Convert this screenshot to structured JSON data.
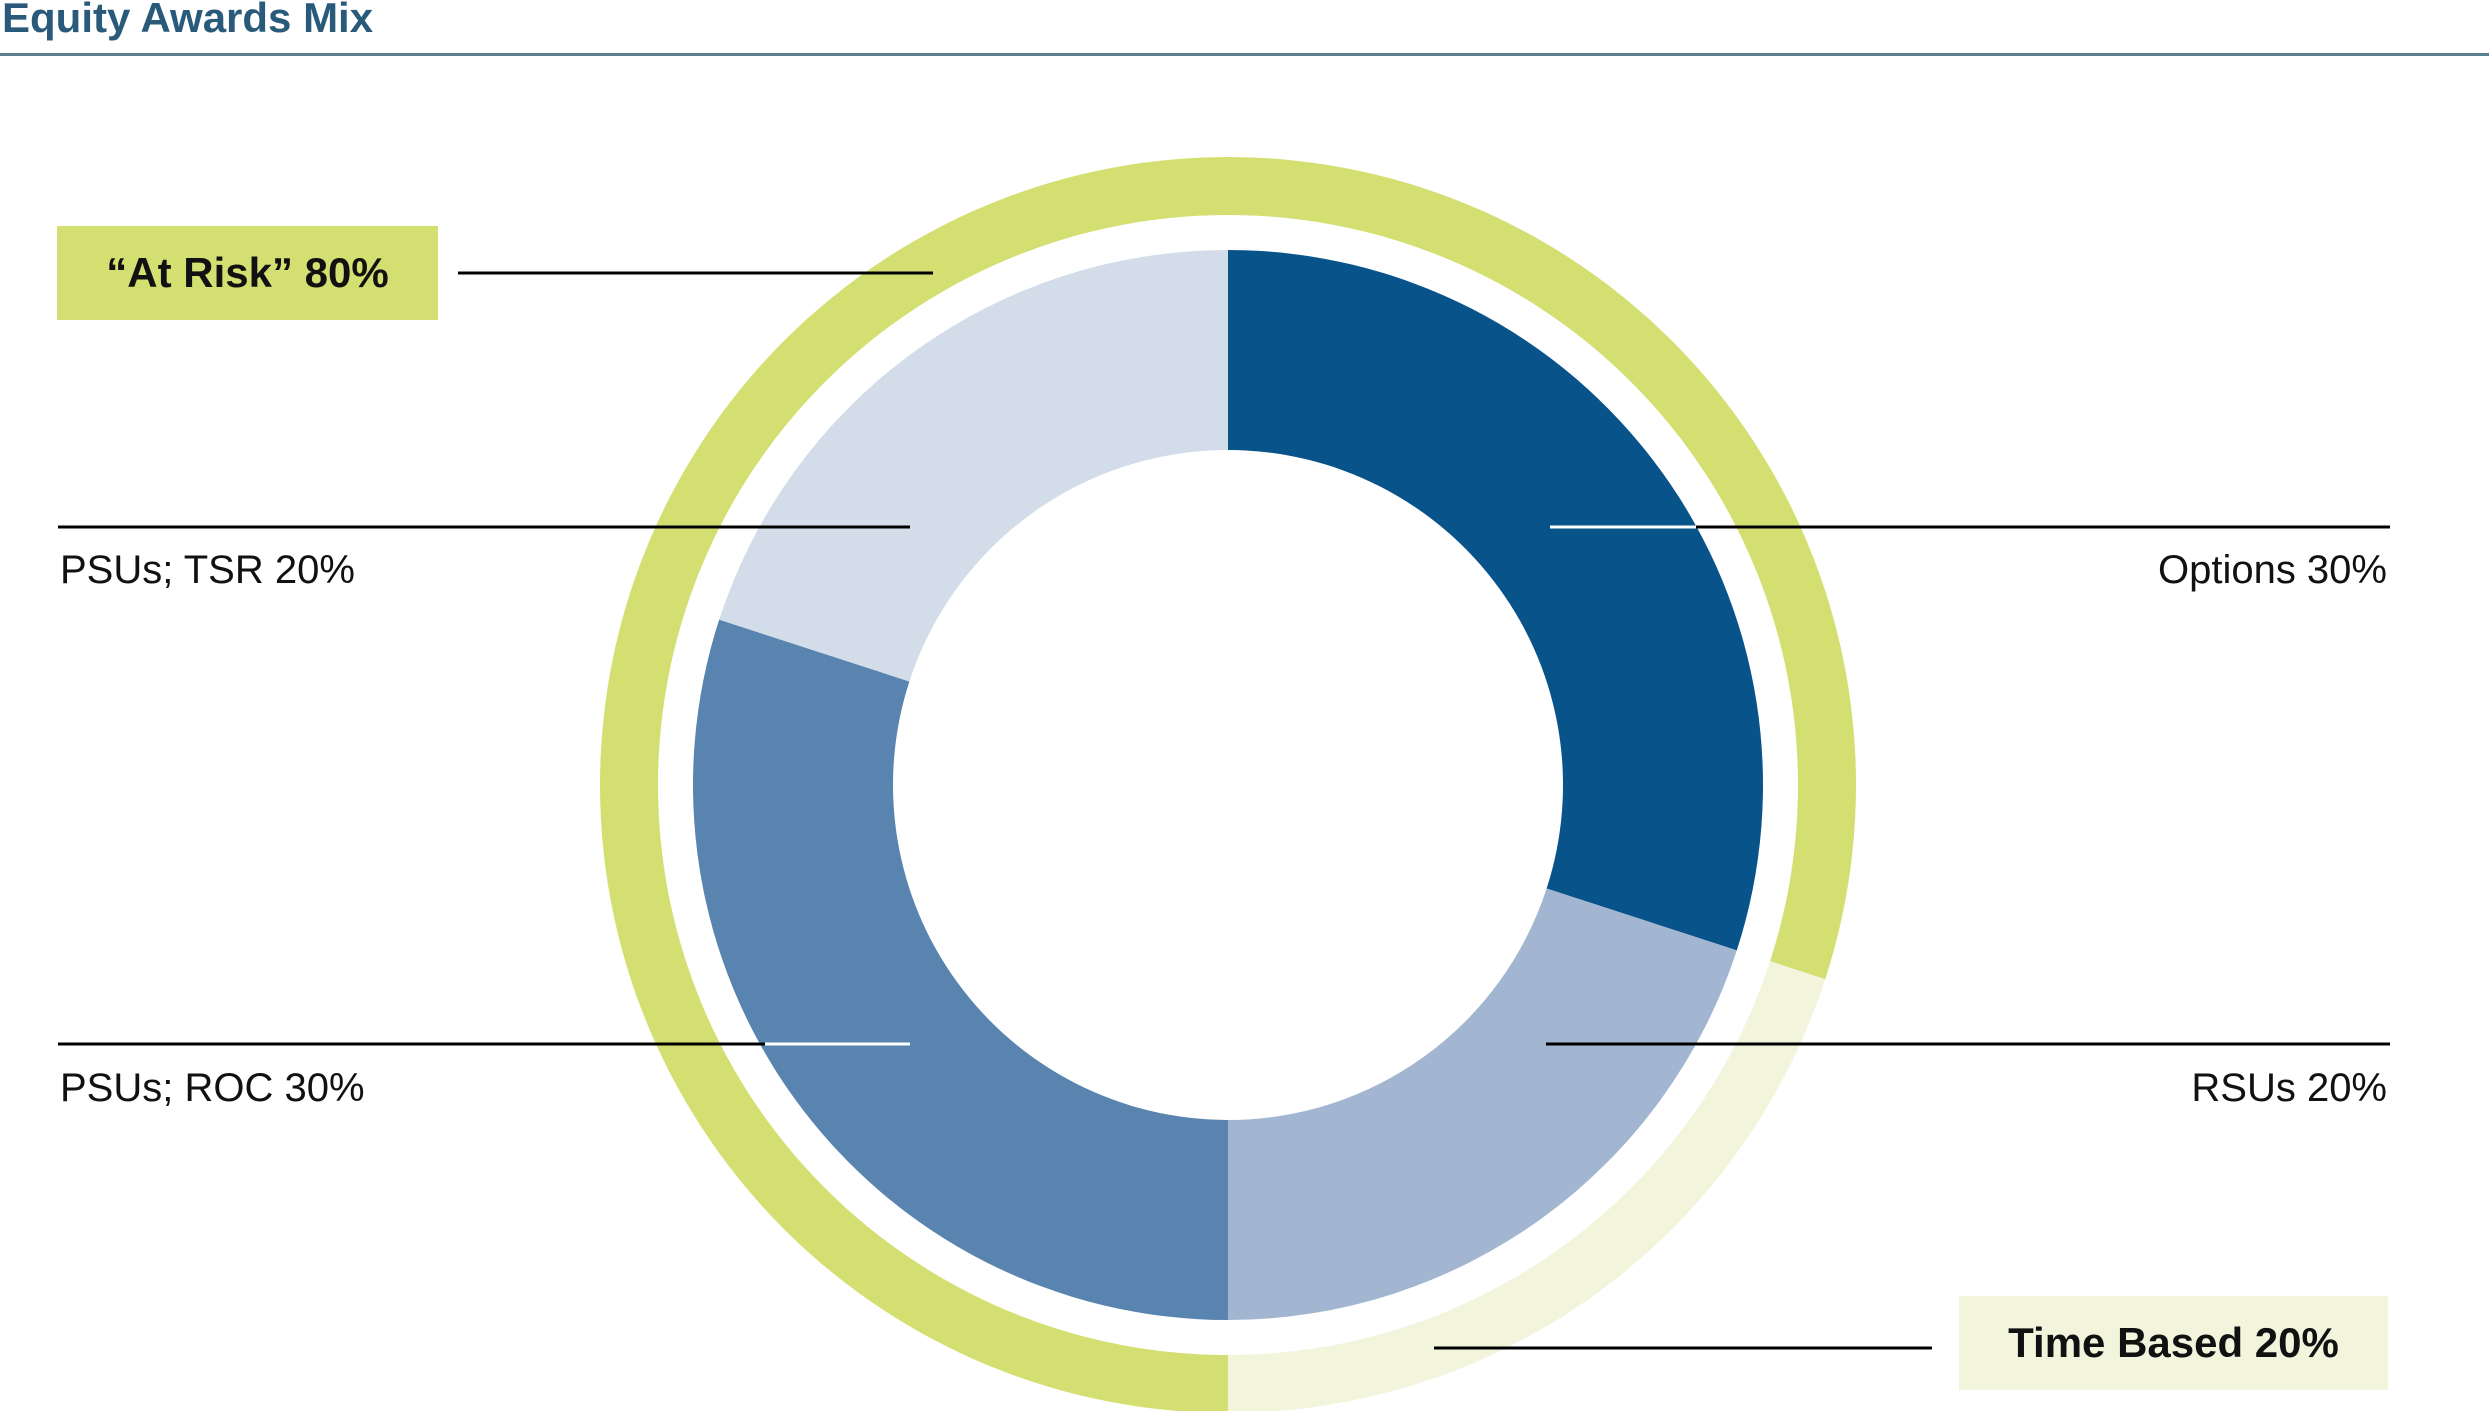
{
  "header": {
    "title": "Equity Awards Mix"
  },
  "colors": {
    "options": "#09538b",
    "rsus": "#a2b6d1",
    "psu_roc": "#5884af",
    "psu_tsr": "#d2dde9",
    "at_risk": "#d4df72",
    "time_based": "#f2f5dc",
    "title": "#2a5a7a"
  },
  "chart_data": {
    "type": "pie",
    "variant": "nested-donut",
    "title": "Equity Awards Mix",
    "inner_ring": [
      {
        "label": "Options",
        "value": 30,
        "label_text": "Options 30%",
        "color": "#09538b"
      },
      {
        "label": "RSUs",
        "value": 20,
        "label_text": "RSUs 20%",
        "color": "#a2b6d1"
      },
      {
        "label": "PSUs; ROC",
        "value": 30,
        "label_text": "PSUs; ROC 30%",
        "color": "#5884af"
      },
      {
        "label": "PSUs; TSR",
        "value": 20,
        "label_text": "PSUs; TSR 20%",
        "color": "#d2dde9"
      }
    ],
    "outer_ring": [
      {
        "label": "At Risk",
        "value": 80,
        "label_text": "“At Risk” 80%",
        "color": "#d4df72"
      },
      {
        "label": "Time Based",
        "value": 20,
        "label_text": "Time Based 20%",
        "color": "#f2f5dc"
      }
    ],
    "outer_ring_order": [
      "Time Based",
      "At Risk"
    ],
    "start_angle_deg": 0,
    "direction": "clockwise"
  }
}
